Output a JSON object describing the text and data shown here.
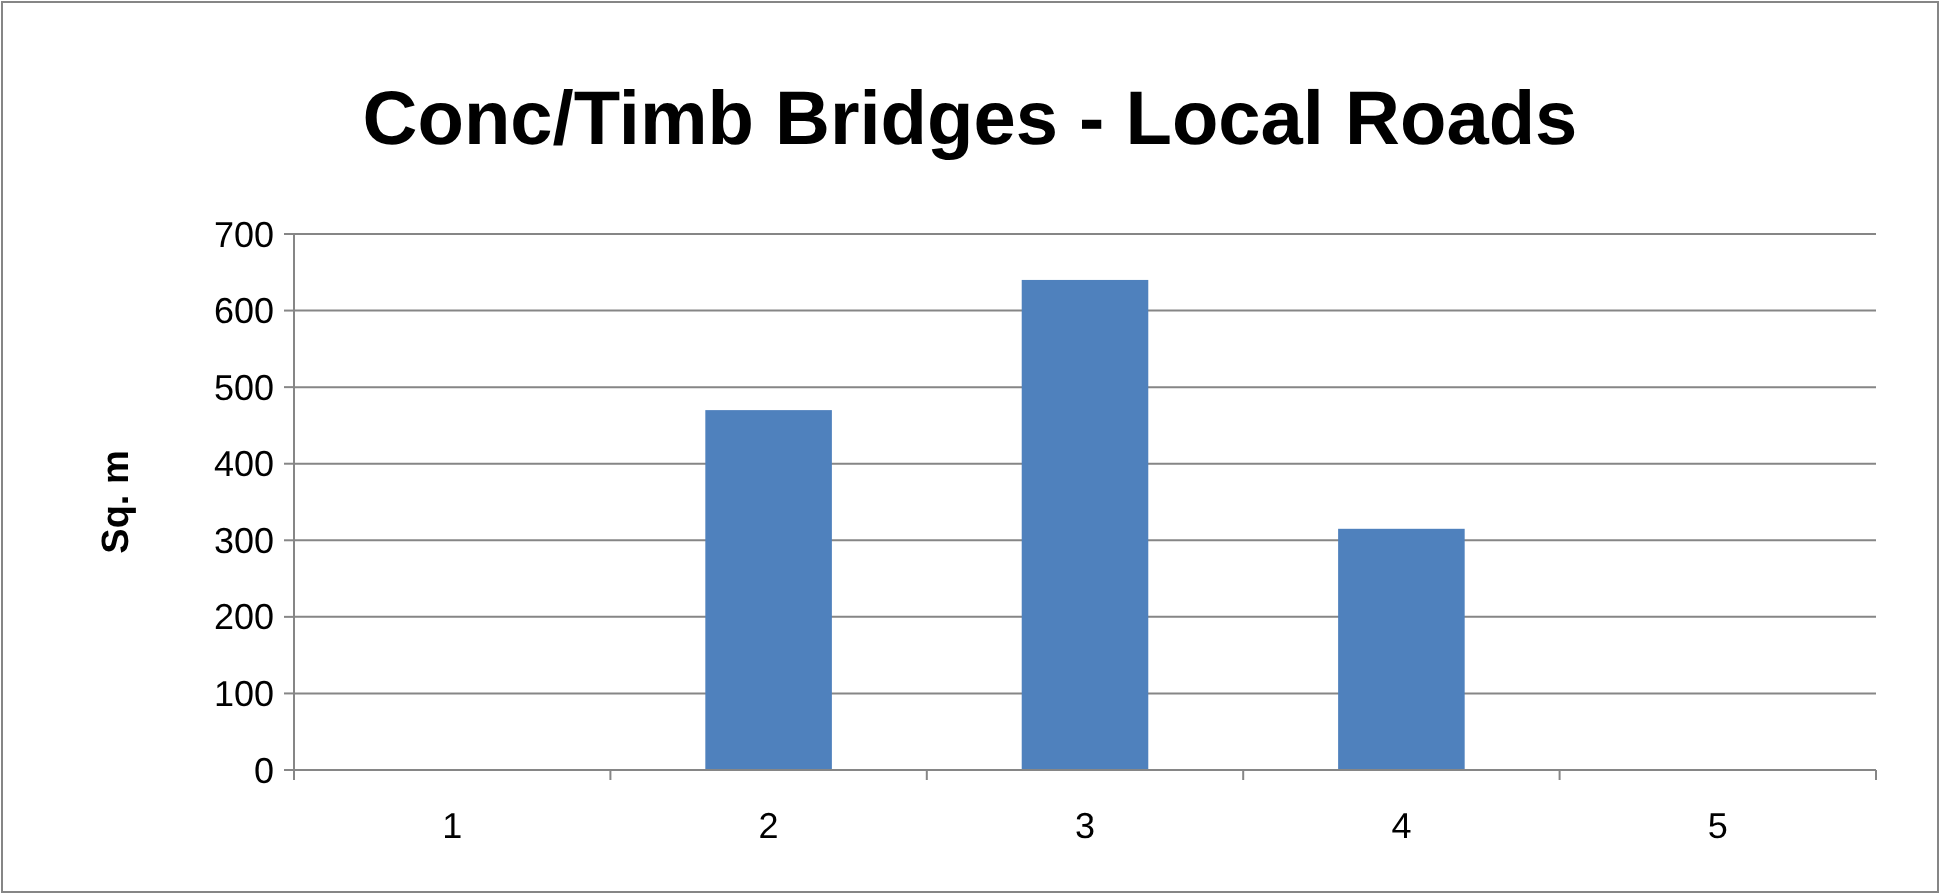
{
  "chart_data": {
    "type": "bar",
    "title": "Conc/Timb Bridges - Local Roads",
    "ylabel": "Sq. m",
    "categories": [
      "1",
      "2",
      "3",
      "4",
      "5"
    ],
    "values": [
      0,
      470,
      640,
      315,
      0
    ],
    "color": "#4f81bd",
    "ylim": [
      0,
      700
    ],
    "yticks": [
      0,
      100,
      200,
      300,
      400,
      500,
      600,
      700
    ],
    "grid": "y"
  }
}
